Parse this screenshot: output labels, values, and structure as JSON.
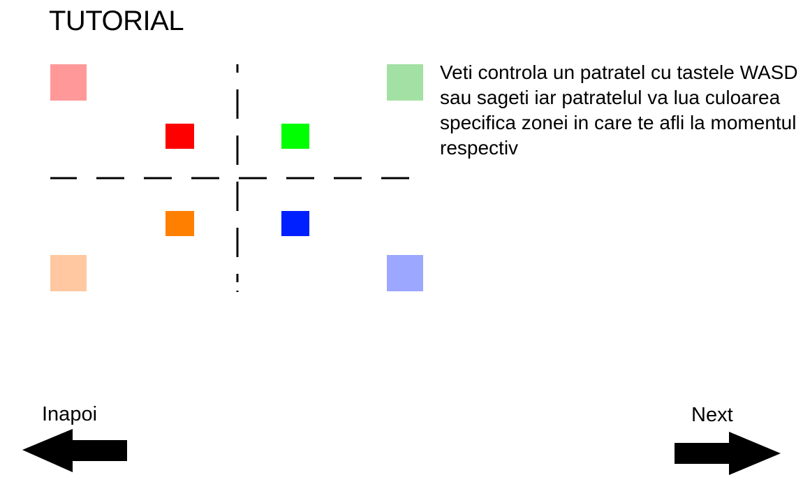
{
  "title": "TUTORIAL",
  "instructions": "Veti controla un patratel cu tastele WASD sau sageti iar patratelul va lua culoarea specifica zonei in care te afli la momentul respectiv",
  "navigation": {
    "back_label": "Inapoi",
    "next_label": "Next",
    "back_icon": "left-arrow-icon",
    "next_icon": "right-arrow-icon"
  },
  "zones": [
    {
      "name": "top-left",
      "color": "#ff0000",
      "light_color": "#ff9999"
    },
    {
      "name": "top-right",
      "color": "#00ff00",
      "light_color": "#a3e0a3"
    },
    {
      "name": "bottom-left",
      "color": "#ff8000",
      "light_color": "#ffc8a0"
    },
    {
      "name": "bottom-right",
      "color": "#0020ff",
      "light_color": "#9ca8ff"
    }
  ]
}
